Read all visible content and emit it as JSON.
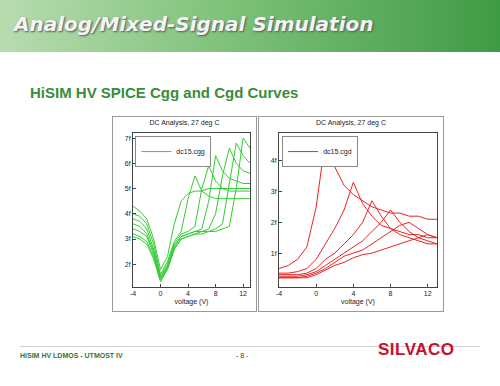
{
  "slide": {
    "header": "Analog/Mixed-Signal Simulation",
    "subtitle": "HiSIM HV SPICE Cgg and Cgd Curves",
    "footer": "HiSIM HV LDMOS - UTMOST IV",
    "page": "- 8 -",
    "logo": "SILVACO"
  },
  "chart_data": [
    {
      "type": "line",
      "title": "DC Analysis, 27 deg C",
      "x_label": "voltage (V)",
      "legend": "upper left",
      "grid": false,
      "x": [
        -4,
        -3,
        -2,
        -1,
        0,
        1,
        2,
        3,
        4,
        5,
        6,
        7,
        8,
        9,
        10,
        11,
        12,
        13
      ],
      "xlim": [
        -4,
        13
      ],
      "xticks": [
        -4,
        0,
        4,
        8,
        12
      ],
      "ylim": [
        1.1,
        7.2
      ],
      "yticks": [
        {
          "value": 2,
          "label": "2f"
        },
        {
          "value": 3,
          "label": "3f"
        },
        {
          "value": 4,
          "label": "4f"
        },
        {
          "value": 5,
          "label": "5f"
        },
        {
          "value": 6,
          "label": "6f"
        },
        {
          "value": 7,
          "label": "7f"
        }
      ],
      "series": [
        {
          "name": "dc15.cgg",
          "color": "#33cc33",
          "values": [
            4.3,
            4.1,
            3.8,
            3.0,
            1.8,
            2.3,
            3.6,
            4.5,
            4.8,
            4.9,
            4.9,
            5.0,
            5.0,
            5.0,
            5.0,
            5.0,
            5.0,
            5.0
          ]
        },
        {
          "color": "#33cc33",
          "values": [
            4.0,
            3.9,
            3.6,
            2.8,
            1.6,
            2.1,
            2.9,
            3.3,
            4.6,
            5.5,
            4.9,
            4.7,
            4.6,
            4.6,
            4.6,
            4.6,
            4.6,
            4.6
          ]
        },
        {
          "color": "#33cc33",
          "values": [
            3.8,
            3.7,
            3.4,
            2.6,
            1.5,
            2.0,
            2.8,
            3.2,
            3.3,
            3.5,
            5.0,
            5.9,
            5.3,
            5.0,
            4.9,
            4.9,
            4.9,
            4.9
          ]
        },
        {
          "color": "#33cc33",
          "values": [
            3.6,
            3.5,
            3.2,
            2.5,
            1.5,
            1.9,
            2.7,
            3.1,
            3.2,
            3.3,
            3.4,
            4.5,
            6.3,
            5.7,
            5.4,
            5.3,
            5.2,
            5.2
          ]
        },
        {
          "color": "#33cc33",
          "values": [
            3.4,
            3.3,
            3.1,
            2.4,
            1.4,
            1.9,
            2.7,
            3.1,
            3.2,
            3.3,
            3.3,
            3.4,
            4.0,
            5.5,
            6.6,
            6.0,
            5.7,
            5.6
          ]
        },
        {
          "color": "#33cc33",
          "values": [
            3.2,
            3.1,
            2.9,
            2.3,
            1.4,
            1.8,
            2.6,
            3.0,
            3.1,
            3.2,
            3.3,
            3.3,
            3.4,
            3.6,
            5.2,
            6.8,
            6.3,
            6.0
          ]
        },
        {
          "color": "#33cc33",
          "values": [
            3.1,
            3.0,
            2.8,
            2.2,
            1.3,
            1.8,
            2.6,
            3.0,
            3.1,
            3.2,
            3.2,
            3.3,
            3.3,
            3.4,
            3.5,
            5.0,
            7.0,
            6.6
          ]
        }
      ]
    },
    {
      "type": "line",
      "title": "DC Analysis, 27 deg C",
      "x_label": "voltage (V)",
      "legend": "upper left",
      "grid": false,
      "x": [
        -4,
        -3,
        -2,
        -1,
        0,
        1,
        2,
        3,
        4,
        5,
        6,
        7,
        8,
        9,
        10,
        11,
        12,
        13
      ],
      "xlim": [
        -4,
        13
      ],
      "xticks": [
        -4,
        0,
        4,
        8,
        12
      ],
      "ylim": [
        -0.1,
        4.9
      ],
      "yticks": [
        {
          "value": 1,
          "label": "1f"
        },
        {
          "value": 2,
          "label": "2f"
        },
        {
          "value": 3,
          "label": "3f"
        },
        {
          "value": 4,
          "label": "4f"
        }
      ],
      "series": [
        {
          "name": "dc15.cgd",
          "color": "#ee2222",
          "values": [
            0.5,
            0.6,
            0.8,
            1.2,
            2.5,
            4.7,
            3.8,
            3.2,
            2.9,
            2.7,
            2.5,
            2.4,
            2.3,
            2.3,
            2.2,
            2.2,
            2.1,
            2.1
          ]
        },
        {
          "color": "#ee2222",
          "values": [
            0.35,
            0.35,
            0.4,
            0.5,
            0.8,
            1.3,
            1.8,
            2.4,
            3.3,
            2.6,
            2.2,
            1.9,
            1.8,
            1.7,
            1.6,
            1.6,
            1.5,
            1.5
          ]
        },
        {
          "color": "#ee2222",
          "values": [
            0.3,
            0.3,
            0.3,
            0.35,
            0.5,
            0.8,
            1.0,
            1.3,
            1.6,
            2.0,
            2.7,
            2.2,
            1.8,
            1.6,
            1.5,
            1.4,
            1.3,
            1.3
          ]
        },
        {
          "color": "#ee2222",
          "values": [
            0.25,
            0.25,
            0.25,
            0.3,
            0.4,
            0.6,
            0.8,
            1.0,
            1.2,
            1.4,
            1.7,
            2.0,
            2.4,
            2.0,
            1.7,
            1.5,
            1.4,
            1.3
          ]
        },
        {
          "color": "#ee2222",
          "values": [
            0.2,
            0.2,
            0.2,
            0.25,
            0.35,
            0.5,
            0.7,
            0.9,
            1.0,
            1.1,
            1.3,
            1.5,
            1.7,
            1.9,
            2.0,
            1.8,
            1.6,
            1.5
          ]
        },
        {
          "color": "#ee2222",
          "values": [
            0.2,
            0.2,
            0.2,
            0.2,
            0.3,
            0.45,
            0.6,
            0.7,
            0.85,
            0.95,
            1.0,
            1.1,
            1.2,
            1.3,
            1.4,
            1.5,
            1.6,
            1.5
          ]
        }
      ]
    }
  ]
}
